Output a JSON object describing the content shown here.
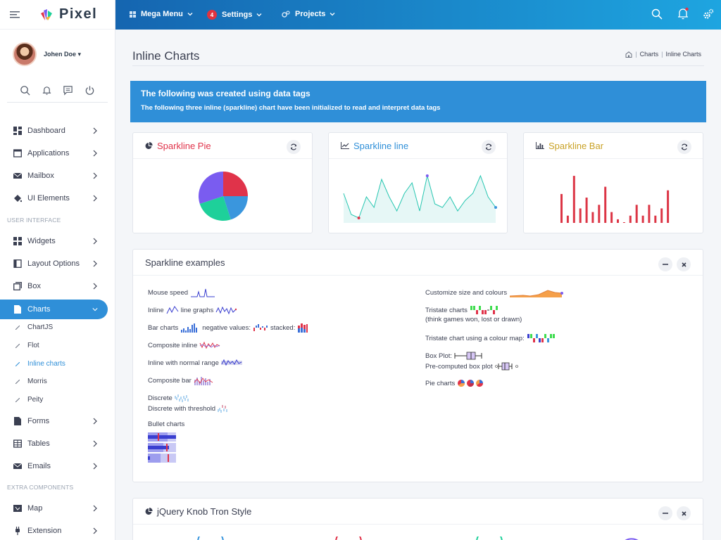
{
  "brand": {
    "name": "Pixel"
  },
  "user": {
    "name": "Johen Doe"
  },
  "topbar": {
    "mega_menu": "Mega Menu",
    "settings": "Settings",
    "settings_badge": "4",
    "projects": "Projects"
  },
  "sidebar": {
    "items": [
      {
        "label": "Dashboard"
      },
      {
        "label": "Applications"
      },
      {
        "label": "Mailbox"
      },
      {
        "label": "UI Elements"
      },
      {
        "label": "Widgets"
      },
      {
        "label": "Layout Options"
      },
      {
        "label": "Box"
      },
      {
        "label": "Charts"
      },
      {
        "label": "Forms"
      },
      {
        "label": "Tables"
      },
      {
        "label": "Emails"
      },
      {
        "label": "Map"
      },
      {
        "label": "Extension"
      }
    ],
    "sections": {
      "ui": "USER INTERFACE",
      "extra": "EXTRA COMPONENTS"
    },
    "charts_sub": [
      {
        "label": "ChartJS"
      },
      {
        "label": "Flot"
      },
      {
        "label": "Inline charts"
      },
      {
        "label": "Morris"
      },
      {
        "label": "Peity"
      }
    ]
  },
  "page": {
    "title": "Inline Charts",
    "breadcrumb": [
      "Charts",
      "Inline Charts"
    ]
  },
  "alert": {
    "title": "The following was created using data tags",
    "text": "The following three inline (sparkline) chart have been initialized to read and interpret data tags"
  },
  "cards": {
    "pie": "Sparkline Pie",
    "line": "Sparkline line",
    "bar": "Sparkline Bar",
    "examples": "Sparkline examples",
    "knob": "jQuery Knob Tron Style"
  },
  "examples": {
    "mouse_speed": "Mouse speed",
    "inline": "Inline",
    "line_graphs": "line graphs",
    "bar_charts": "Bar charts",
    "negative_values": "negative values:",
    "stacked": "stacked:",
    "composite_inline": "Composite inline",
    "normal_range": "Inline with normal range",
    "composite_bar": "Composite bar",
    "discrete": "Discrete",
    "discrete_threshold": "Discrete with threshold",
    "bullet": "Bullet charts",
    "customize": "Customize size and colours",
    "tristate": "Tristate charts",
    "tristate_note": "(think games won, lost or drawn)",
    "tristate_map": "Tristate chart using a colour map:",
    "box_plot": "Box Plot:",
    "precomputed": "Pre-computed box plot",
    "pie_charts": "Pie charts"
  },
  "colors": {
    "accent": "#2f8fd8",
    "red": "#dc3545",
    "gold": "#c9a227"
  },
  "chart_data": [
    {
      "type": "pie",
      "title": "Sparkline Pie",
      "values": [
        25,
        20,
        25,
        30
      ],
      "colors": [
        "#e0334a",
        "#3a96dd",
        "#1ed09a",
        "#7a5cf0"
      ]
    },
    {
      "type": "line",
      "title": "Sparkline line",
      "values": [
        8,
        2,
        1,
        7,
        4,
        12,
        7,
        3,
        8,
        11,
        3,
        13,
        5,
        4,
        7,
        3,
        6,
        8,
        13,
        7,
        4
      ],
      "ylim": [
        0,
        14
      ]
    },
    {
      "type": "bar",
      "title": "Sparkline Bar",
      "values": [
        8,
        2,
        13,
        4,
        7,
        3,
        5,
        10,
        3,
        1,
        0,
        2,
        5,
        2,
        5,
        2,
        4,
        9
      ],
      "ylim": [
        0,
        14
      ]
    }
  ]
}
